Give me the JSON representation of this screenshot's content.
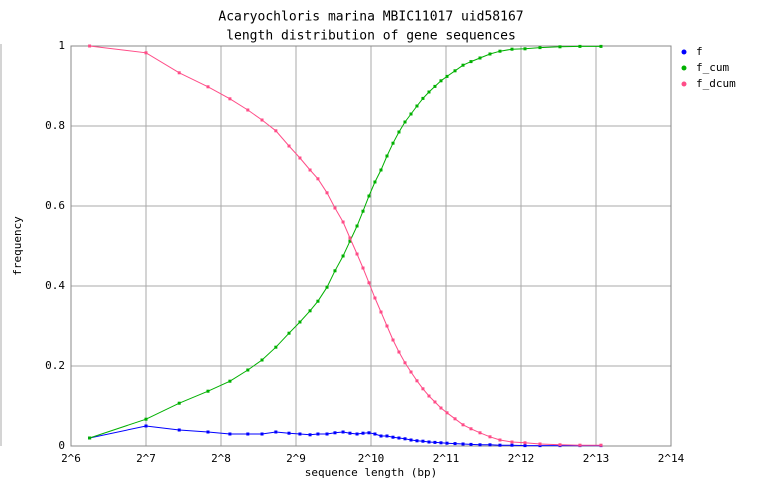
{
  "chart_data": {
    "type": "line",
    "title": "Acaryochloris marina MBIC11017 uid58167",
    "subtitle": "length distribution of gene sequences",
    "x_label": "sequence length (bp)",
    "y_label": "frequency",
    "x_scale": "log2",
    "grid": true,
    "legend": "right",
    "xlim": [
      64,
      16384
    ],
    "xticks": [
      {
        "value": 64,
        "label": "2^6"
      },
      {
        "value": 128,
        "label": "2^7"
      },
      {
        "value": 256,
        "label": "2^8"
      },
      {
        "value": 512,
        "label": "2^9"
      },
      {
        "value": 1024,
        "label": "2^10"
      },
      {
        "value": 2048,
        "label": "2^11"
      },
      {
        "value": 4096,
        "label": "2^12"
      },
      {
        "value": 8192,
        "label": "2^13"
      },
      {
        "value": 16384,
        "label": "2^14"
      }
    ],
    "ylim": [
      0,
      1
    ],
    "yticks": [
      0,
      0.2,
      0.4,
      0.6,
      0.8,
      1
    ],
    "x": [
      76,
      128,
      174,
      227,
      278,
      328,
      374,
      425,
      480,
      531,
      583,
      627,
      682,
      734,
      791,
      843,
      900,
      951,
      1005,
      1062,
      1123,
      1187,
      1255,
      1326,
      1402,
      1482,
      1566,
      1655,
      1750,
      1849,
      1955,
      2067,
      2226,
      2397,
      2580,
      2804,
      3075,
      3372,
      3768,
      4250,
      4882,
      5872,
      7062,
      8577
    ],
    "series": [
      {
        "name": "f",
        "color": "#0000ff",
        "values": [
          0.02,
          0.05,
          0.04,
          0.035,
          0.03,
          0.03,
          0.03,
          0.035,
          0.032,
          0.03,
          0.028,
          0.03,
          0.03,
          0.033,
          0.035,
          0.032,
          0.03,
          0.032,
          0.033,
          0.03,
          0.025,
          0.025,
          0.022,
          0.02,
          0.018,
          0.015,
          0.013,
          0.012,
          0.01,
          0.009,
          0.008,
          0.007,
          0.006,
          0.005,
          0.004,
          0.003,
          0.003,
          0.002,
          0.002,
          0.001,
          0.001,
          0.001,
          0.001,
          0.001
        ]
      },
      {
        "name": "f_cum",
        "color": "#00b000",
        "values": [
          0.02,
          0.067,
          0.107,
          0.137,
          0.162,
          0.19,
          0.215,
          0.247,
          0.282,
          0.31,
          0.338,
          0.362,
          0.397,
          0.438,
          0.475,
          0.512,
          0.55,
          0.587,
          0.625,
          0.66,
          0.69,
          0.725,
          0.757,
          0.785,
          0.81,
          0.83,
          0.85,
          0.869,
          0.885,
          0.899,
          0.913,
          0.924,
          0.938,
          0.952,
          0.961,
          0.97,
          0.98,
          0.987,
          0.992,
          0.993,
          0.996,
          0.998,
          0.999,
          0.999
        ]
      },
      {
        "name": "f_dcum",
        "color": "#ff4d88",
        "values": [
          1.0,
          0.983,
          0.933,
          0.898,
          0.868,
          0.84,
          0.815,
          0.788,
          0.75,
          0.72,
          0.69,
          0.668,
          0.633,
          0.595,
          0.56,
          0.52,
          0.48,
          0.445,
          0.408,
          0.37,
          0.335,
          0.3,
          0.265,
          0.235,
          0.208,
          0.185,
          0.163,
          0.143,
          0.125,
          0.11,
          0.095,
          0.083,
          0.068,
          0.053,
          0.043,
          0.033,
          0.023,
          0.015,
          0.01,
          0.008,
          0.005,
          0.003,
          0.002,
          0.002
        ]
      }
    ]
  }
}
